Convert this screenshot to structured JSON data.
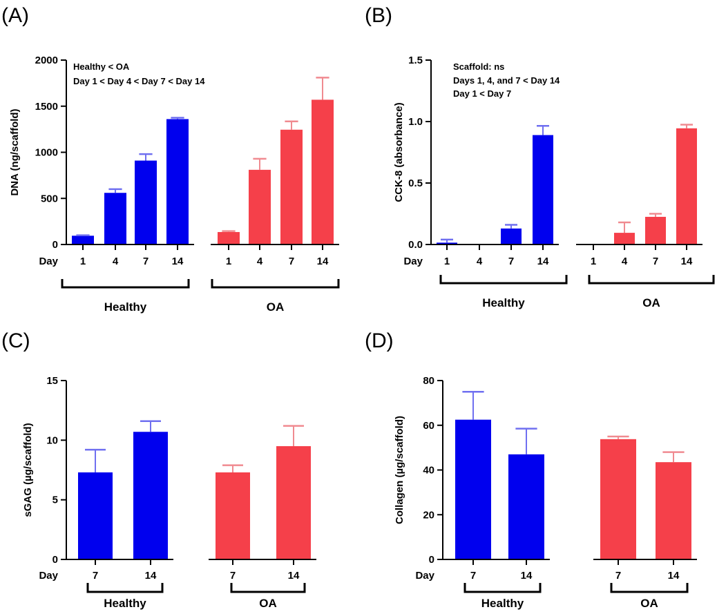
{
  "colors": {
    "healthy": "#0000ee",
    "healthy_err": "#6f6ff0",
    "oa": "#f5404a",
    "oa_err": "#f08a90"
  },
  "chart_data": [
    {
      "id": "A",
      "panel_label": "(A)",
      "type": "bar",
      "ylabel": "DNA (ng/scaffold)",
      "ylim": [
        0,
        2000
      ],
      "yticks": [
        0,
        500,
        1000,
        1500,
        2000
      ],
      "ytick_labels": [
        "0",
        "500",
        "1000",
        "1500",
        "2000"
      ],
      "x_prefix": "Day",
      "annotations": [
        "Healthy < OA",
        "Day 1 < Day 4 < Day 7 < Day 14"
      ],
      "groups": [
        {
          "name": "Healthy",
          "color_key": "healthy",
          "categories": [
            "1",
            "4",
            "7",
            "14"
          ],
          "values": [
            95,
            560,
            910,
            1360
          ],
          "errors": [
            5,
            40,
            70,
            15
          ]
        },
        {
          "name": "OA",
          "color_key": "oa",
          "categories": [
            "1",
            "4",
            "7",
            "14"
          ],
          "values": [
            135,
            810,
            1245,
            1570
          ],
          "errors": [
            10,
            120,
            90,
            240
          ]
        }
      ]
    },
    {
      "id": "B",
      "panel_label": "(B)",
      "type": "bar",
      "ylabel": "CCK-8 (absorbance)",
      "ylim": [
        0,
        1.5
      ],
      "yticks": [
        0,
        0.5,
        1.0,
        1.5
      ],
      "ytick_labels": [
        "0.0",
        "0.5",
        "1.0",
        "1.5"
      ],
      "x_prefix": "Day",
      "annotations": [
        "Scaffold: ns",
        "Days 1, 4, and 7 < Day 14",
        "Day 1 < Day 7"
      ],
      "groups": [
        {
          "name": "Healthy",
          "color_key": "healthy",
          "categories": [
            "1",
            "4",
            "7",
            "14"
          ],
          "values": [
            0.015,
            0,
            0.13,
            0.89
          ],
          "errors": [
            0.025,
            0,
            0.03,
            0.075
          ]
        },
        {
          "name": "OA",
          "color_key": "oa",
          "categories": [
            "1",
            "4",
            "7",
            "14"
          ],
          "values": [
            0,
            0.095,
            0.225,
            0.945
          ],
          "errors": [
            0,
            0.085,
            0.025,
            0.03
          ]
        }
      ]
    },
    {
      "id": "C",
      "panel_label": "(C)",
      "type": "bar",
      "ylabel": "sGAG (µg/scaffold)",
      "ylim": [
        0,
        15
      ],
      "yticks": [
        0,
        5,
        10,
        15
      ],
      "ytick_labels": [
        "0",
        "5",
        "10",
        "15"
      ],
      "x_prefix": "Day",
      "annotations": [],
      "groups": [
        {
          "name": "Healthy",
          "color_key": "healthy",
          "categories": [
            "7",
            "14"
          ],
          "values": [
            7.3,
            10.7
          ],
          "errors": [
            1.9,
            0.9
          ]
        },
        {
          "name": "OA",
          "color_key": "oa",
          "categories": [
            "7",
            "14"
          ],
          "values": [
            7.3,
            9.5
          ],
          "errors": [
            0.6,
            1.7
          ]
        }
      ]
    },
    {
      "id": "D",
      "panel_label": "(D)",
      "type": "bar",
      "ylabel": "Collagen (µg/scaffold)",
      "ylim": [
        0,
        80
      ],
      "yticks": [
        0,
        20,
        40,
        60,
        80
      ],
      "ytick_labels": [
        "0",
        "20",
        "40",
        "60",
        "80"
      ],
      "x_prefix": "Day",
      "annotations": [],
      "groups": [
        {
          "name": "Healthy",
          "color_key": "healthy",
          "categories": [
            "7",
            "14"
          ],
          "values": [
            62.5,
            47
          ],
          "errors": [
            12.5,
            11.5
          ]
        },
        {
          "name": "OA",
          "color_key": "oa",
          "categories": [
            "7",
            "14"
          ],
          "values": [
            53.8,
            43.5
          ],
          "errors": [
            1.2,
            4.5
          ]
        }
      ]
    }
  ]
}
